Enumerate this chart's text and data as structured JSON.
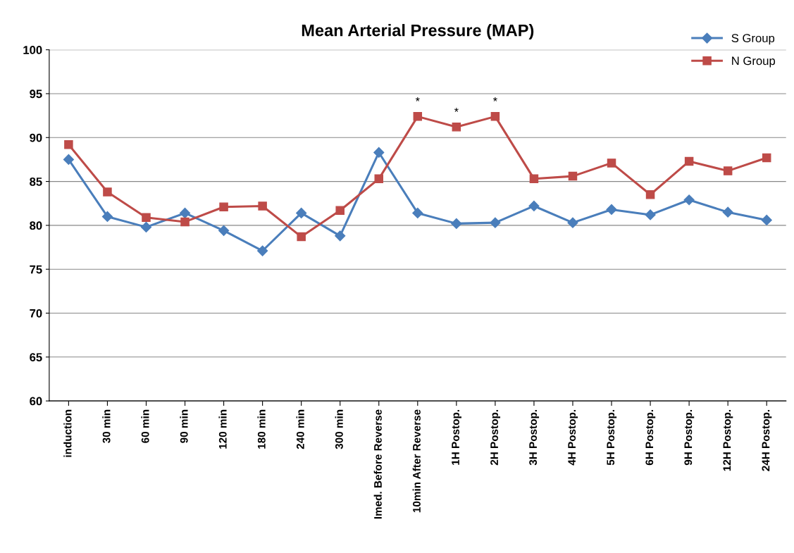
{
  "chart_data": {
    "type": "line",
    "title": "Mean Arterial Pressure (MAP)",
    "categories": [
      "induction",
      "30 min",
      "60 min",
      "90 min",
      "120 min",
      "180 min",
      "240 min",
      "300 min",
      "Imed. Before Reverse",
      "10min After Reverse",
      "1H Postop.",
      "2H Postop.",
      "3H Postop.",
      "4H Postop.",
      "5H Postop.",
      "6H Postop.",
      "9H Postop.",
      "12H Postop.",
      "24H Postop."
    ],
    "series": [
      {
        "name": "S Group",
        "color": "#4a7ebb",
        "marker": "diamond",
        "values": [
          87.5,
          81.0,
          79.8,
          81.4,
          79.4,
          77.1,
          81.4,
          78.8,
          88.3,
          81.4,
          80.2,
          80.3,
          82.2,
          80.3,
          81.8,
          81.2,
          82.9,
          81.5,
          80.6
        ]
      },
      {
        "name": "N Group",
        "color": "#be4b48",
        "marker": "square",
        "values": [
          89.2,
          83.8,
          80.9,
          80.4,
          82.1,
          82.2,
          78.7,
          81.7,
          85.3,
          92.4,
          91.2,
          92.4,
          85.3,
          85.6,
          87.1,
          83.5,
          87.3,
          86.2,
          87.7
        ]
      }
    ],
    "ylim": [
      60,
      100
    ],
    "yticks": [
      60,
      65,
      70,
      75,
      80,
      85,
      90,
      95,
      100
    ],
    "grid": "y",
    "legend": "top right",
    "line_style": "solid",
    "annotations": [
      {
        "text": "*",
        "x": "10min After Reverse",
        "y": 92.4
      },
      {
        "text": "*",
        "x": "1H Postop.",
        "y": 91.2
      },
      {
        "text": "*",
        "x": "2H Postop.",
        "y": 92.4
      }
    ]
  }
}
